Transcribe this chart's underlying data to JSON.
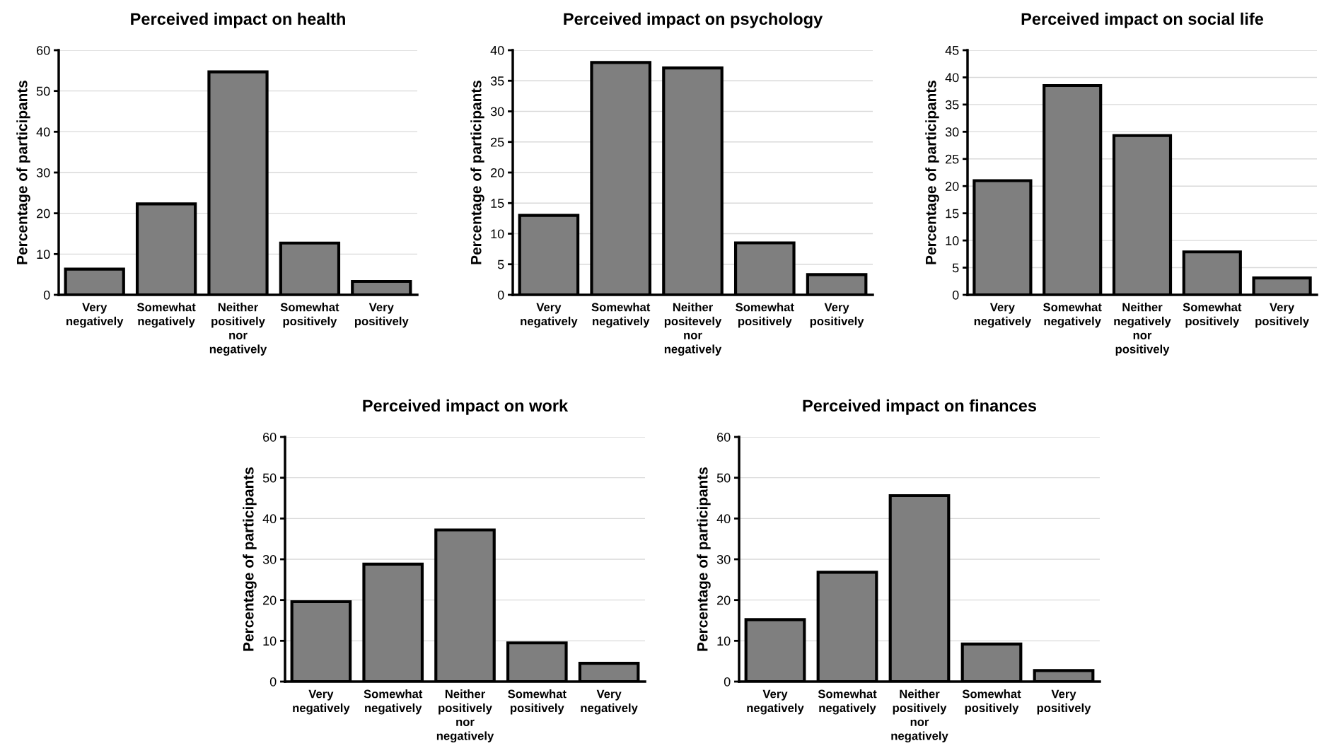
{
  "chart_data": [
    {
      "type": "bar",
      "title": "Perceived impact on health",
      "ylabel": "Percentage of participants",
      "categories": [
        "Very\nnegatively",
        "Somewhat\nnegatively",
        "Neither\npositively\nnor\nnegatively",
        "Somewhat\npositively",
        "Very\npositively"
      ],
      "values": [
        6.3,
        22.3,
        54.7,
        12.7,
        3.3
      ],
      "color": "#7f7f7f",
      "ylim": [
        0,
        60
      ],
      "yticks": [
        0,
        10,
        20,
        30,
        40,
        50,
        60
      ],
      "grid": "y"
    },
    {
      "type": "bar",
      "title": "Perceived impact on psychology",
      "ylabel": "Percentage of participants",
      "categories": [
        "Very\nnegatively",
        "Somewhat\nnegatively",
        "Neither\npositevely\nnor\nnegatively",
        "Somewhat\npositively",
        "Very\npositively"
      ],
      "values": [
        13.0,
        38.0,
        37.1,
        8.5,
        3.3
      ],
      "color": "#7f7f7f",
      "ylim": [
        0,
        40
      ],
      "yticks": [
        0,
        5,
        10,
        15,
        20,
        25,
        30,
        35,
        40
      ],
      "grid": "y"
    },
    {
      "type": "bar",
      "title": "Perceived impact on social life",
      "ylabel": "Percentage of participants",
      "categories": [
        "Very\nnegatively",
        "Somewhat\nnegatively",
        "Neither\nnegatively\nnor\npositively",
        "Somewhat\npositively",
        "Very\npositively"
      ],
      "values": [
        21.0,
        38.5,
        29.3,
        7.9,
        3.1
      ],
      "color": "#7f7f7f",
      "ylim": [
        0,
        45
      ],
      "yticks": [
        0,
        5,
        10,
        15,
        20,
        25,
        30,
        35,
        40,
        45
      ],
      "grid": "y"
    },
    {
      "type": "bar",
      "title": "Perceived impact on work",
      "ylabel": "Percentage of participants",
      "categories": [
        "Very\nnegatively",
        "Somewhat\nnegatively",
        "Neither\npositively\nnor\nnegatively",
        "Somewhat\npositively",
        "Very\nnegatively"
      ],
      "values": [
        19.6,
        28.8,
        37.2,
        9.5,
        4.5
      ],
      "color": "#7f7f7f",
      "ylim": [
        0,
        60
      ],
      "yticks": [
        0,
        10,
        20,
        30,
        40,
        50,
        60
      ],
      "grid": "y"
    },
    {
      "type": "bar",
      "title": "Perceived impact on finances",
      "ylabel": "Percentage of participants",
      "categories": [
        "Very\nnegatively",
        "Somewhat\nnegatively",
        "Neither\npositively\nnor\nnegatively",
        "Somewhat\npositively",
        "Very\npositively"
      ],
      "values": [
        15.2,
        26.8,
        45.6,
        9.2,
        2.7
      ],
      "color": "#7f7f7f",
      "ylim": [
        0,
        60
      ],
      "yticks": [
        0,
        10,
        20,
        30,
        40,
        50,
        60
      ],
      "grid": "y"
    }
  ]
}
